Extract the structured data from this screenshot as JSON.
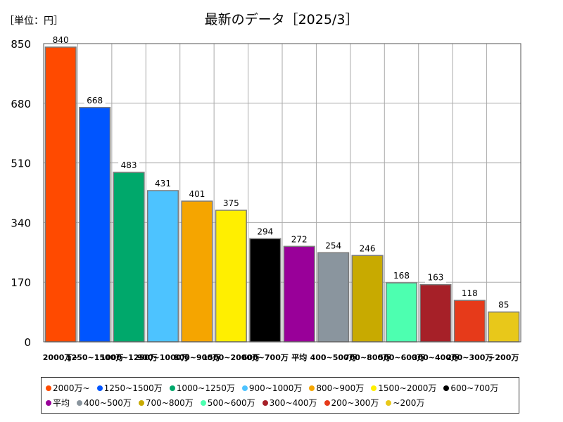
{
  "chart_data": {
    "type": "bar",
    "title": "最新のデータ［2025/3］",
    "unit_label": "［単位：円］",
    "ylim": [
      0,
      850
    ],
    "yticks": [
      0,
      170,
      340,
      510,
      680,
      850
    ],
    "grid": true,
    "legend_position": "bottom",
    "categories": [
      "2000万~",
      "1250~1500万",
      "1000~1250万",
      "900~1000万",
      "800~900万",
      "1500~2000万",
      "600~700万",
      "平均",
      "400~500万",
      "700~800万",
      "500~600万",
      "300~400万",
      "200~300万",
      "~200万"
    ],
    "values": [
      840,
      668,
      483,
      431,
      401,
      375,
      294,
      272,
      254,
      246,
      168,
      163,
      118,
      85
    ],
    "colors": [
      "#ff4a00",
      "#0055ff",
      "#00a86b",
      "#4dc3ff",
      "#f5a500",
      "#ffef00",
      "#000000",
      "#990099",
      "#8a959e",
      "#c8aa00",
      "#4dffb0",
      "#a62028",
      "#e63a1a",
      "#e8c81a"
    ]
  }
}
